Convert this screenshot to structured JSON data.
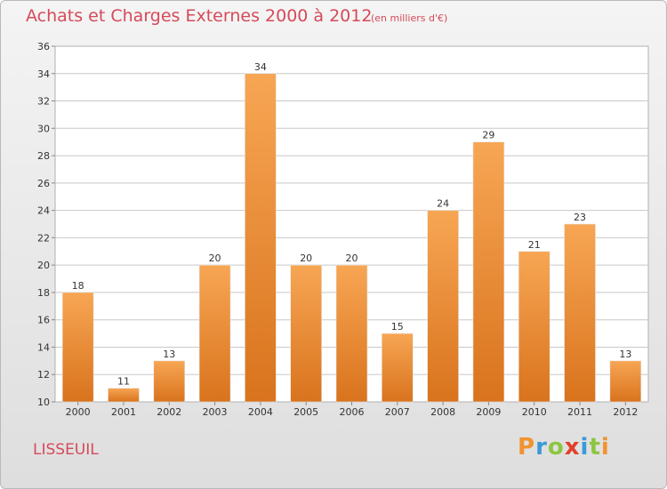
{
  "header": {
    "title": "Achats et Charges Externes 2000 à 2012",
    "subtitle": "(en milliers d'€)"
  },
  "footer": {
    "place": "LISSEUIL",
    "logo_text": "Proxiti"
  },
  "colors": {
    "title": "#d54a5a",
    "bar_top": "#f7a654",
    "bar_bottom": "#d9731d",
    "grid": "#c8c8c8",
    "axis_text": "#333333",
    "logo_letters": [
      "#f0932f",
      "#3a9ad9",
      "#8cc63f",
      "#e2402a",
      "#3a9ad9",
      "#8cc63f",
      "#f0932f"
    ]
  },
  "chart_data": {
    "type": "bar",
    "categories": [
      "2000",
      "2001",
      "2002",
      "2003",
      "2004",
      "2005",
      "2006",
      "2007",
      "2008",
      "2009",
      "2010",
      "2011",
      "2012"
    ],
    "values": [
      18,
      11,
      13,
      20,
      34,
      20,
      20,
      15,
      24,
      29,
      21,
      23,
      13
    ],
    "title": "Achats et Charges Externes 2000 à 2012",
    "subtitle": "(en milliers d'€)",
    "xlabel": "",
    "ylabel": "",
    "ylim": [
      10,
      36
    ],
    "yticks": [
      10,
      12,
      14,
      16,
      18,
      20,
      22,
      24,
      26,
      28,
      30,
      32,
      34,
      36
    ],
    "grid": true,
    "data_labels": true
  }
}
